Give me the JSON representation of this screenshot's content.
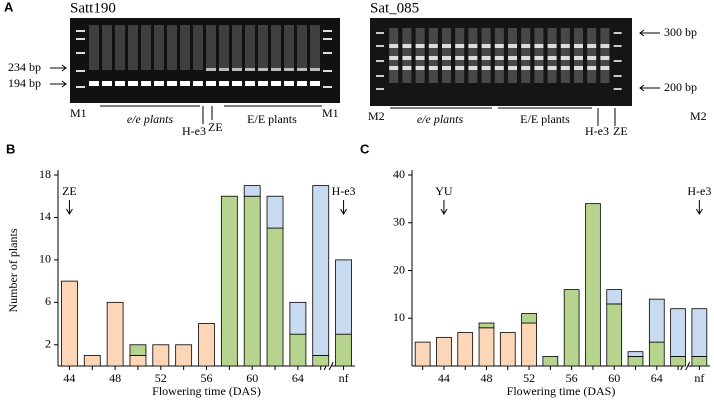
{
  "panel_a": {
    "label": "A",
    "left": {
      "title": "Satt190",
      "size_labels": [
        "234 bp",
        "194 bp"
      ],
      "lane_labels": [
        "M1",
        "e/e plants",
        "H-e3",
        "ZE",
        "E/E plants",
        "M1"
      ]
    },
    "right": {
      "title": "Sat_085",
      "size_labels": [
        "300 bp",
        "200 bp"
      ],
      "lane_labels": [
        "M2",
        "e/e plants",
        "E/E plants",
        "H-e3",
        "ZE",
        "M2"
      ]
    }
  },
  "chart_data": [
    {
      "type": "bar",
      "stacked": true,
      "panel": "B",
      "ylabel": "Number of plants",
      "xlabel": "Flowering time (DAS)",
      "annotations": [
        "ZE",
        "H-e3"
      ],
      "categories": [
        "44",
        null,
        "48",
        null,
        "52",
        null,
        "56",
        null,
        "60",
        null,
        "64",
        null,
        "nf"
      ],
      "ylim": [
        0,
        18
      ],
      "yticks": [
        2,
        6,
        10,
        14,
        18
      ],
      "series": [
        {
          "color": "#fcd6b6",
          "values": [
            8,
            1,
            6,
            1,
            2,
            2,
            4,
            null,
            null,
            null,
            null,
            null,
            null
          ]
        },
        {
          "color": "#b6d48d",
          "values": [
            null,
            null,
            null,
            1,
            null,
            null,
            null,
            16,
            16,
            13,
            3,
            1,
            3
          ]
        },
        {
          "color": "#c7daf0",
          "values": [
            null,
            null,
            null,
            null,
            null,
            null,
            null,
            null,
            1,
            3,
            3,
            16,
            7
          ]
        }
      ]
    },
    {
      "type": "bar",
      "stacked": true,
      "panel": "C",
      "ylabel": null,
      "xlabel": "Flowering time (DAS)",
      "annotations": [
        "YU",
        "H-e3"
      ],
      "categories": [
        null,
        "44",
        null,
        "48",
        null,
        "52",
        null,
        "56",
        null,
        "60",
        null,
        "64",
        null,
        "nf"
      ],
      "ylim": [
        0,
        40
      ],
      "yticks": [
        10,
        20,
        30,
        40
      ],
      "series": [
        {
          "color": "#fcd6b6",
          "values": [
            5,
            6,
            7,
            8,
            7,
            9,
            null,
            null,
            null,
            null,
            null,
            null,
            null,
            null
          ]
        },
        {
          "color": "#b6d48d",
          "values": [
            null,
            null,
            null,
            1,
            null,
            2,
            2,
            16,
            34,
            13,
            2,
            5,
            2,
            2
          ]
        },
        {
          "color": "#c7daf0",
          "values": [
            null,
            null,
            null,
            null,
            null,
            null,
            null,
            null,
            null,
            3,
            1,
            9,
            10,
            10
          ]
        }
      ]
    }
  ]
}
